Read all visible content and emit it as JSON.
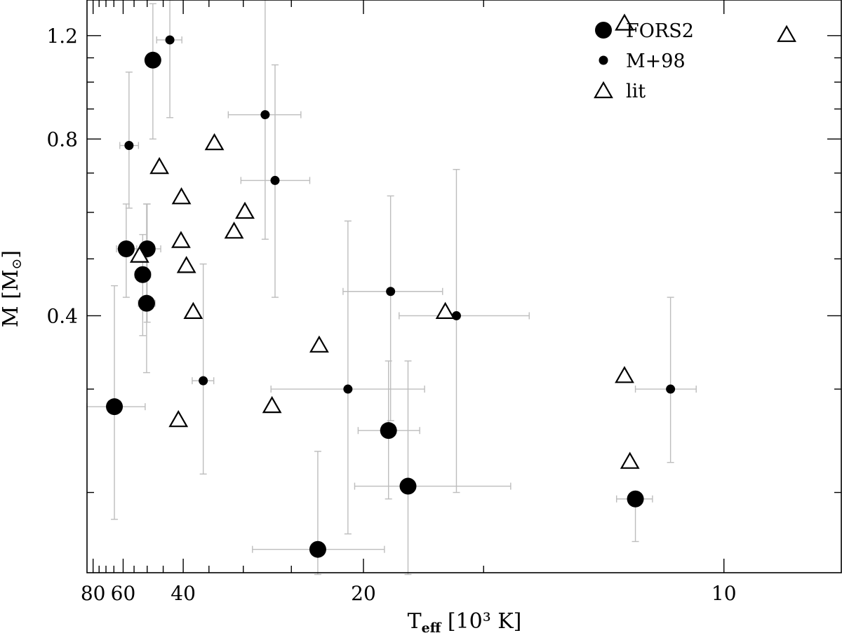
{
  "chart_data": {
    "type": "scatter",
    "title": "",
    "xlabel": {
      "main": "T",
      "sub": "eff",
      "rest": " [10³ K]"
    },
    "ylabel": {
      "main": "M [M",
      "sun": "⊙",
      "close": "]"
    },
    "x_scale": "reciprocal",
    "y_scale": "log",
    "xlim": [
      85.8,
      8.6
    ],
    "ylim": [
      0.146,
      1.38
    ],
    "x_major_ticks": [
      80,
      60,
      40,
      20,
      10
    ],
    "x_tick_labels": [
      "80",
      "60",
      "40",
      "20",
      "10"
    ],
    "x_minor_ticks": [
      75,
      70,
      65,
      55,
      50,
      45,
      35,
      30,
      25,
      15
    ],
    "y_major_ticks": [
      0.4,
      0.8,
      1.2
    ],
    "y_tick_labels": [
      "0.4",
      "0.8",
      "1.2"
    ],
    "y_minor_ticks": [
      0.2,
      0.3,
      0.5,
      0.6,
      0.7,
      0.9,
      1.0,
      1.1
    ],
    "grid": false,
    "legend_position": "top-right",
    "colors": {
      "marker": "#000000",
      "errorbar": "#bdbdbd",
      "open_marker_fill": "#ffffff"
    },
    "series": [
      {
        "name": "FORS2",
        "marker": "large-filled-circle",
        "points": [
          {
            "x": 48.1,
            "y": 1.09,
            "ylo": 0.8,
            "yhi": 1.36
          },
          {
            "x": 58.5,
            "y": 0.52,
            "xlo": 53.9,
            "xhi": 63.5,
            "ylo": 0.43,
            "yhi": 0.62
          },
          {
            "x": 50.0,
            "y": 0.52,
            "xlo": 45.7,
            "xhi": 55.2,
            "ylo": 0.39,
            "yhi": 0.62
          },
          {
            "x": 51.6,
            "y": 0.47,
            "xlo": 48.8,
            "xhi": 54.6,
            "ylo": 0.37,
            "yhi": 0.55
          },
          {
            "x": 50.2,
            "y": 0.42,
            "xlo": 47.4,
            "xhi": 53.3,
            "ylo": 0.32,
            "yhi": 0.62
          },
          {
            "x": 64.7,
            "y": 0.28,
            "xlo": 50.7,
            "xhi": 86.0,
            "ylo": 0.18,
            "yhi": 0.45
          },
          {
            "x": 18.7,
            "y": 0.255,
            "xlo": 17.3,
            "xhi": 20.3,
            "ylo": 0.195,
            "yhi": 0.335
          },
          {
            "x": 17.8,
            "y": 0.205,
            "xlo": 14.2,
            "xhi": 20.5,
            "ylo": 0.145,
            "yhi": 0.335
          },
          {
            "x": 22.9,
            "y": 0.16,
            "xlo": 18.9,
            "xhi": 28.9,
            "ylo": 0.145,
            "yhi": 0.235
          },
          {
            "x": 11.4,
            "y": 0.195,
            "xlo": 11.1,
            "xhi": 11.75,
            "ylo": 0.165
          }
        ]
      },
      {
        "name": "M+98",
        "marker": "small-filled-circle",
        "points": [
          {
            "x": 43.2,
            "y": 1.18,
            "xlo": 40.3,
            "xhi": 46.9,
            "ylo": 0.87,
            "yhi": 1.38
          },
          {
            "x": 57.2,
            "y": 0.78,
            "xlo": 53.2,
            "xhi": 61.7,
            "ylo": 0.61,
            "yhi": 1.04
          },
          {
            "x": 27.5,
            "y": 0.88,
            "xlo": 24.2,
            "xhi": 32.0,
            "ylo": 0.54,
            "yhi": 1.38
          },
          {
            "x": 26.5,
            "y": 0.68,
            "xlo": 23.5,
            "xhi": 30.3,
            "ylo": 0.43,
            "yhi": 1.07
          },
          {
            "x": 36.0,
            "y": 0.31,
            "xlo": 34.2,
            "xhi": 38.1,
            "ylo": 0.215,
            "yhi": 0.49
          },
          {
            "x": 18.6,
            "y": 0.44,
            "xlo": 16.4,
            "xhi": 21.2,
            "ylo": 0.265,
            "yhi": 0.64
          },
          {
            "x": 20.9,
            "y": 0.3,
            "xlo": 17.1,
            "xhi": 26.9,
            "ylo": 0.17,
            "yhi": 0.58
          },
          {
            "x": 15.9,
            "y": 0.4,
            "xlo": 13.7,
            "xhi": 18.2,
            "ylo": 0.2,
            "yhi": 0.71
          },
          {
            "x": 10.8,
            "y": 0.3,
            "xlo": 10.4,
            "xhi": 11.4,
            "ylo": 0.225,
            "yhi": 0.43
          }
        ]
      },
      {
        "name": "lit",
        "marker": "open-triangle",
        "points": [
          {
            "x": 9.2,
            "y": 1.2
          },
          {
            "x": 11.6,
            "y": 1.255
          },
          {
            "x": 34.1,
            "y": 0.785
          },
          {
            "x": 46.1,
            "y": 0.715
          },
          {
            "x": 40.4,
            "y": 0.635
          },
          {
            "x": 29.8,
            "y": 0.6
          },
          {
            "x": 31.2,
            "y": 0.555
          },
          {
            "x": 40.5,
            "y": 0.535
          },
          {
            "x": 52.8,
            "y": 0.505
          },
          {
            "x": 39.3,
            "y": 0.485
          },
          {
            "x": 37.9,
            "y": 0.405
          },
          {
            "x": 22.8,
            "y": 0.355
          },
          {
            "x": 16.3,
            "y": 0.405
          },
          {
            "x": 11.6,
            "y": 0.315
          },
          {
            "x": 26.8,
            "y": 0.28
          },
          {
            "x": 41.1,
            "y": 0.265
          },
          {
            "x": 11.5,
            "y": 0.225
          }
        ]
      }
    ]
  }
}
